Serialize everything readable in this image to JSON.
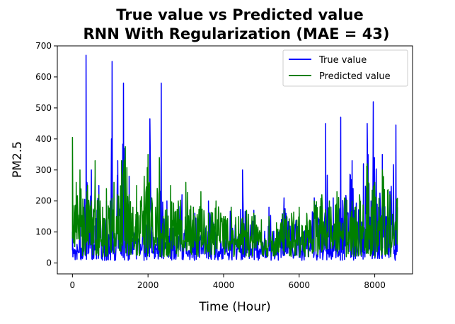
{
  "chart_data": {
    "type": "line",
    "title": "True value vs Predicted value",
    "subtitle": "RNN With Regularization (MAE = 43)",
    "xlabel": "Time (Hour)",
    "ylabel": "PM2.5",
    "xlim": [
      -400,
      9000
    ],
    "ylim": [
      -35,
      700
    ],
    "xticks": [
      0,
      2000,
      4000,
      6000,
      8000
    ],
    "yticks": [
      0,
      100,
      200,
      300,
      400,
      500,
      600,
      700
    ],
    "grid": false,
    "legend_position": "top-right",
    "x_max": 8600,
    "series": [
      {
        "name": "True value",
        "color": "#0000ff",
        "anchors": [
          [
            0,
            100
          ],
          [
            120,
            60
          ],
          [
            200,
            170
          ],
          [
            300,
            40
          ],
          [
            360,
            670
          ],
          [
            420,
            80
          ],
          [
            500,
            300
          ],
          [
            600,
            120
          ],
          [
            700,
            250
          ],
          [
            800,
            60
          ],
          [
            900,
            200
          ],
          [
            1000,
            80
          ],
          [
            1050,
            650
          ],
          [
            1100,
            100
          ],
          [
            1200,
            330
          ],
          [
            1300,
            60
          ],
          [
            1350,
            580
          ],
          [
            1400,
            120
          ],
          [
            1500,
            280
          ],
          [
            1600,
            80
          ],
          [
            1700,
            180
          ],
          [
            1800,
            60
          ],
          [
            1900,
            200
          ],
          [
            2000,
            300
          ],
          [
            2050,
            465
          ],
          [
            2100,
            100
          ],
          [
            2200,
            60
          ],
          [
            2300,
            160
          ],
          [
            2350,
            580
          ],
          [
            2400,
            130
          ],
          [
            2500,
            200
          ],
          [
            2700,
            100
          ],
          [
            2900,
            220
          ],
          [
            3000,
            80
          ],
          [
            3200,
            180
          ],
          [
            3400,
            90
          ],
          [
            3600,
            200
          ],
          [
            3800,
            100
          ],
          [
            4000,
            120
          ],
          [
            4200,
            180
          ],
          [
            4400,
            110
          ],
          [
            4500,
            300
          ],
          [
            4600,
            150
          ],
          [
            4800,
            170
          ],
          [
            5000,
            100
          ],
          [
            5200,
            180
          ],
          [
            5400,
            80
          ],
          [
            5600,
            210
          ],
          [
            5800,
            120
          ],
          [
            6000,
            160
          ],
          [
            6200,
            110
          ],
          [
            6400,
            210
          ],
          [
            6600,
            130
          ],
          [
            6700,
            450
          ],
          [
            6800,
            150
          ],
          [
            6900,
            210
          ],
          [
            7000,
            100
          ],
          [
            7100,
            470
          ],
          [
            7200,
            200
          ],
          [
            7400,
            330
          ],
          [
            7600,
            150
          ],
          [
            7700,
            320
          ],
          [
            7800,
            450
          ],
          [
            7900,
            200
          ],
          [
            7960,
            520
          ],
          [
            8100,
            180
          ],
          [
            8200,
            350
          ],
          [
            8300,
            150
          ],
          [
            8400,
            230
          ],
          [
            8560,
            445
          ],
          [
            8600,
            180
          ]
        ]
      },
      {
        "name": "Predicted value",
        "color": "#008000",
        "anchors": [
          [
            0,
            405
          ],
          [
            100,
            260
          ],
          [
            200,
            300
          ],
          [
            300,
            180
          ],
          [
            400,
            250
          ],
          [
            500,
            200
          ],
          [
            600,
            330
          ],
          [
            700,
            220
          ],
          [
            800,
            180
          ],
          [
            900,
            240
          ],
          [
            1000,
            200
          ],
          [
            1100,
            260
          ],
          [
            1200,
            220
          ],
          [
            1300,
            330
          ],
          [
            1400,
            375
          ],
          [
            1500,
            220
          ],
          [
            1600,
            180
          ],
          [
            1700,
            250
          ],
          [
            1800,
            200
          ],
          [
            1900,
            280
          ],
          [
            2000,
            350
          ],
          [
            2100,
            210
          ],
          [
            2200,
            180
          ],
          [
            2300,
            340
          ],
          [
            2400,
            150
          ],
          [
            2600,
            250
          ],
          [
            2800,
            200
          ],
          [
            3000,
            260
          ],
          [
            3200,
            180
          ],
          [
            3400,
            230
          ],
          [
            3600,
            160
          ],
          [
            3800,
            200
          ],
          [
            4000,
            150
          ],
          [
            4200,
            180
          ],
          [
            4400,
            150
          ],
          [
            4600,
            170
          ],
          [
            4800,
            160
          ],
          [
            5000,
            140
          ],
          [
            5200,
            150
          ],
          [
            5400,
            130
          ],
          [
            5600,
            170
          ],
          [
            5800,
            160
          ],
          [
            6000,
            180
          ],
          [
            6200,
            160
          ],
          [
            6400,
            200
          ],
          [
            6600,
            220
          ],
          [
            6800,
            200
          ],
          [
            7000,
            230
          ],
          [
            7200,
            210
          ],
          [
            7400,
            200
          ],
          [
            7600,
            220
          ],
          [
            7800,
            320
          ],
          [
            8000,
            260
          ],
          [
            8200,
            300
          ],
          [
            8400,
            220
          ],
          [
            8600,
            210
          ]
        ]
      }
    ]
  }
}
